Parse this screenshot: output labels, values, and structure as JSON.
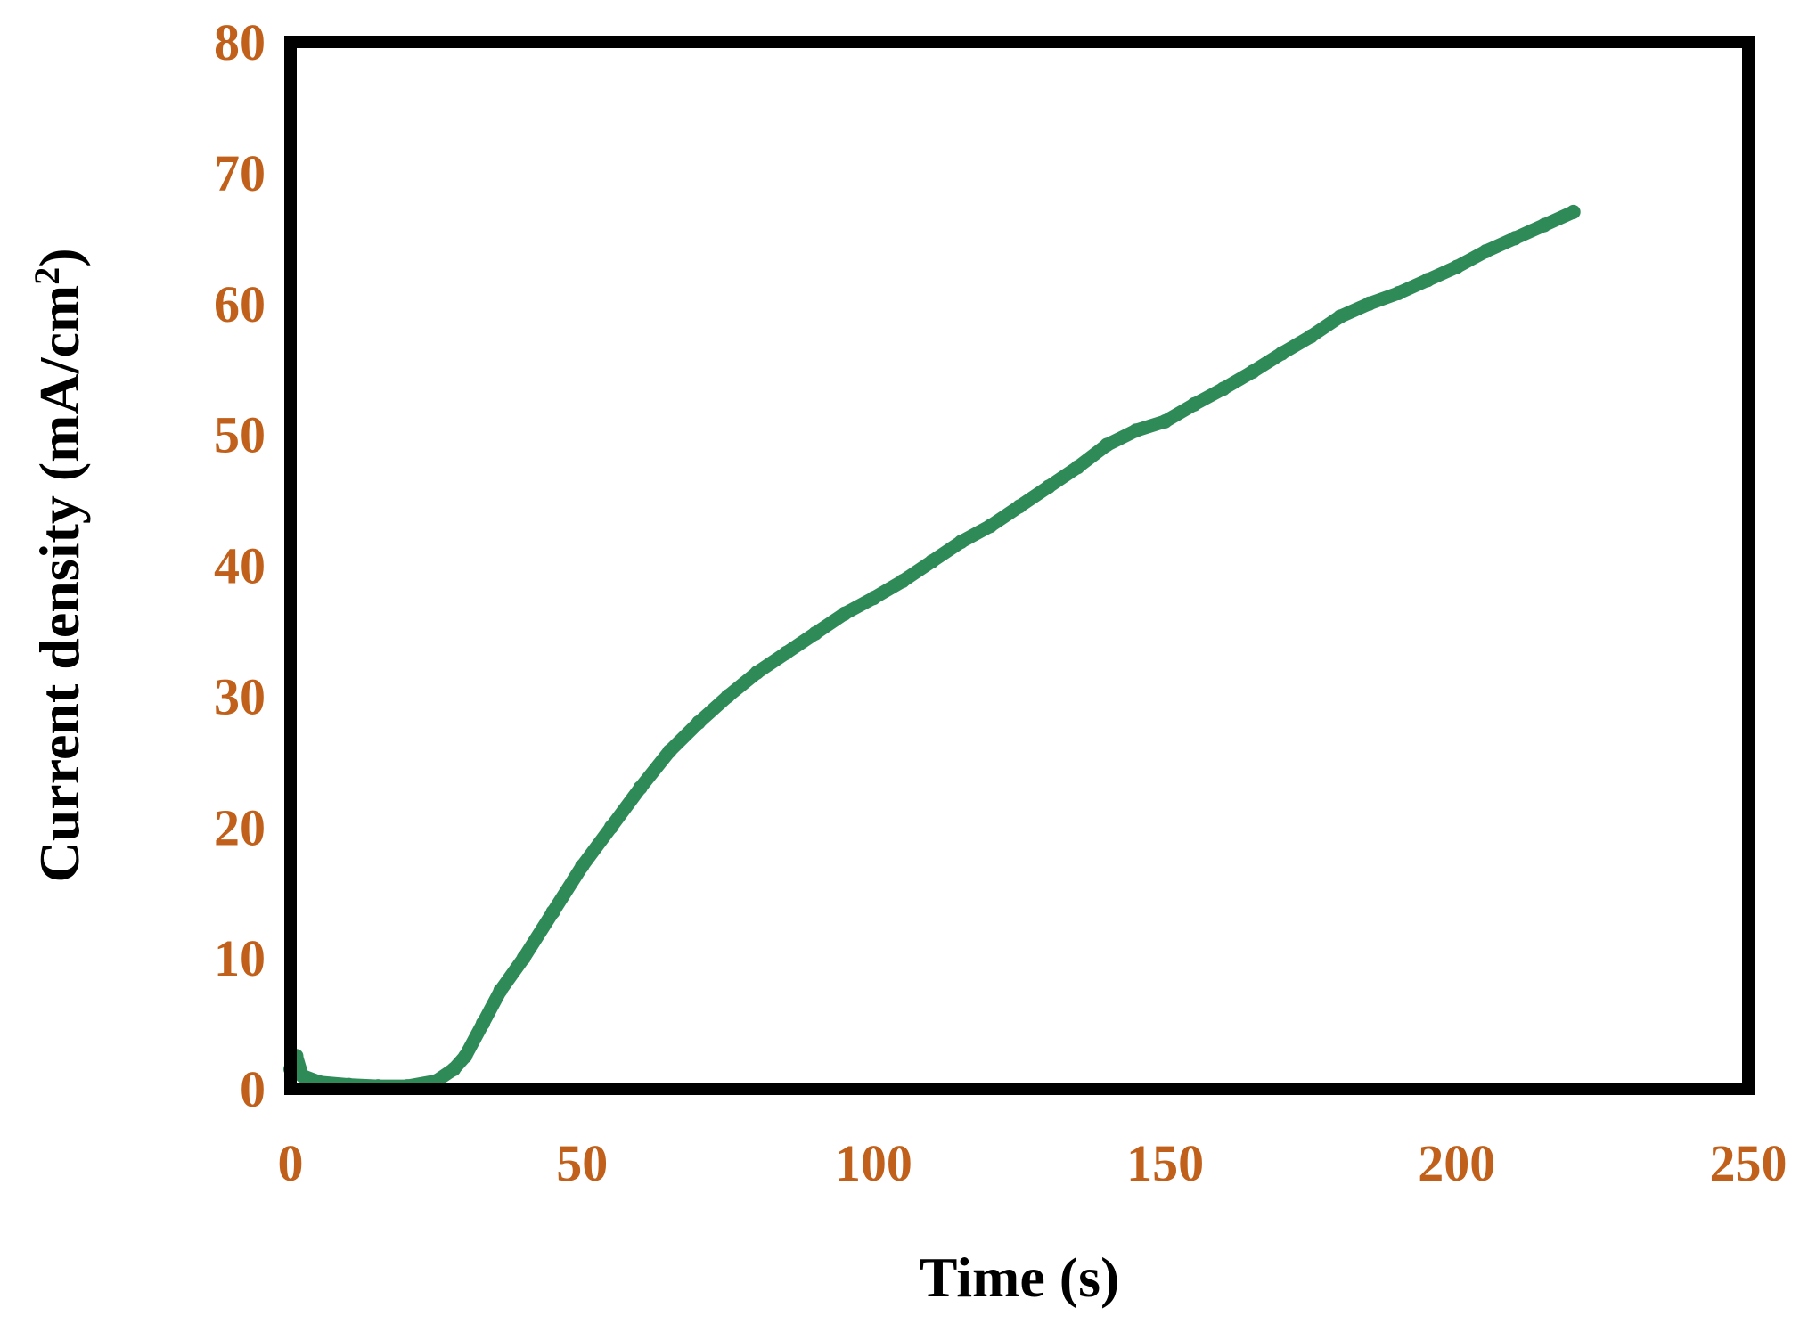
{
  "chart_data": {
    "type": "line",
    "xlabel": "Time (s)",
    "ylabel_main": "Current density (mA/cm",
    "ylabel_superscript": "2",
    "ylabel_close": ")",
    "xlim": [
      0,
      250
    ],
    "ylim": [
      0,
      80
    ],
    "xticks": [
      0,
      50,
      100,
      150,
      200,
      250
    ],
    "yticks": [
      0,
      10,
      20,
      30,
      40,
      50,
      60,
      70,
      80
    ],
    "grid": false,
    "legend": "none",
    "colors": {
      "series": "#2e8b57",
      "tick_labels": "#c0601a",
      "axis_titles": "#000000",
      "frame": "#000000"
    },
    "series": [
      {
        "x": [
          0,
          1,
          2,
          5,
          10,
          15,
          20,
          25,
          28,
          30,
          33,
          36,
          40,
          45,
          50,
          55,
          60,
          65,
          70,
          75,
          80,
          85,
          90,
          95,
          100,
          105,
          110,
          115,
          120,
          125,
          130,
          135,
          140,
          145,
          150,
          155,
          160,
          165,
          170,
          175,
          180,
          185,
          190,
          195,
          200,
          205,
          210,
          215,
          220
        ],
        "y": [
          1.5,
          2.5,
          1.0,
          0.5,
          0.3,
          0.2,
          0.2,
          0.6,
          1.5,
          2.5,
          5.0,
          7.5,
          10.0,
          13.5,
          17.0,
          20.0,
          23.0,
          25.8,
          28.0,
          30.0,
          31.8,
          33.3,
          34.8,
          36.3,
          37.5,
          38.8,
          40.3,
          41.8,
          43.0,
          44.5,
          46.0,
          47.5,
          49.2,
          50.3,
          51.0,
          52.3,
          53.5,
          54.8,
          56.2,
          57.5,
          59.0,
          60.0,
          60.8,
          61.8,
          62.8,
          64.0,
          65.0,
          66.0,
          67.0
        ]
      }
    ]
  }
}
